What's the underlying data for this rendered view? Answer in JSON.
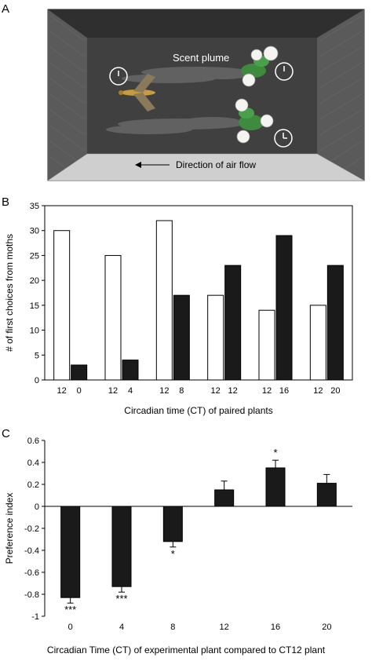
{
  "panel_a": {
    "letter": "A",
    "scent_label": "Scent plume",
    "airflow_label": "Direction of air flow",
    "colors": {
      "chamber": "#3f3f3f",
      "floor": "#cfcfcf",
      "mesh": "#555555",
      "clock": "#ffffff"
    },
    "icons": [
      "moth-icon",
      "flower-plant-icon",
      "clock-icon",
      "arrow-left-icon"
    ]
  },
  "chart_data": [
    {
      "panel": "B",
      "type": "bar",
      "ylabel": "# of first choices from moths",
      "xlabel": "Circadian time (CT) of paired plants",
      "ylim": [
        0,
        35
      ],
      "yticks": [
        0,
        5,
        10,
        15,
        20,
        25,
        30,
        35
      ],
      "groups": [
        {
          "labels": [
            "12",
            "0"
          ],
          "values": [
            30,
            3
          ]
        },
        {
          "labels": [
            "12",
            "4"
          ],
          "values": [
            25,
            4
          ]
        },
        {
          "labels": [
            "12",
            "8"
          ],
          "values": [
            32,
            17
          ]
        },
        {
          "labels": [
            "12",
            "12"
          ],
          "values": [
            17,
            23
          ]
        },
        {
          "labels": [
            "12",
            "16"
          ],
          "values": [
            14,
            29
          ]
        },
        {
          "labels": [
            "12",
            "20"
          ],
          "values": [
            15,
            23
          ]
        }
      ],
      "colors": {
        "first": "#ffffff",
        "second": "#1a1a1a"
      }
    },
    {
      "panel": "C",
      "type": "bar",
      "ylabel": "Preference index",
      "xlabel": "Circadian Time (CT) of experimental plant compared to CT12 plant",
      "ylim": [
        -1,
        0.6
      ],
      "yticks": [
        -1,
        -0.8,
        -0.6,
        -0.4,
        -0.2,
        0,
        0.2,
        0.4,
        0.6
      ],
      "categories": [
        "0",
        "4",
        "8",
        "12",
        "16",
        "20"
      ],
      "values": [
        -0.83,
        -0.73,
        -0.32,
        0.15,
        0.35,
        0.21
      ],
      "errors": [
        0.05,
        0.05,
        0.05,
        0.08,
        0.07,
        0.08
      ],
      "significance": [
        "***",
        "***",
        "*",
        "",
        "*",
        ""
      ],
      "color": "#1a1a1a"
    }
  ]
}
